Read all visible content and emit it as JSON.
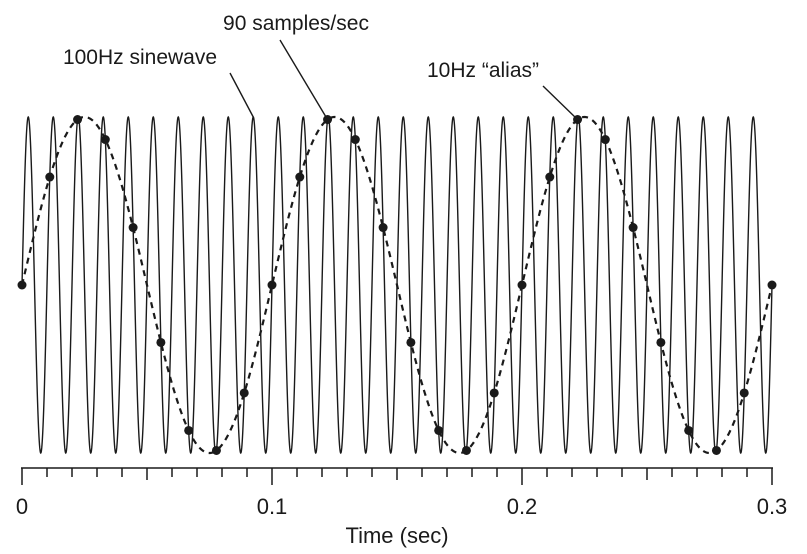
{
  "chart_data": {
    "type": "line",
    "title": "",
    "xlabel": "Time (sec)",
    "ylabel": "",
    "xlim": [
      0,
      0.3
    ],
    "ylim": [
      -1,
      1
    ],
    "grid": false,
    "x_major_ticks": [
      0,
      0.1,
      0.2,
      0.3
    ],
    "x_tick_labels": [
      "0",
      "0.1",
      "0.2",
      "0.3"
    ],
    "x_minor_tick_step": 0.01,
    "series": [
      {
        "name": "100Hz sinewave",
        "frequency_hz": 100,
        "amplitude": 1,
        "style": "solid",
        "color": "#1a1a1a"
      },
      {
        "name": "10Hz “alias”",
        "frequency_hz": 10,
        "amplitude": 1,
        "style": "dashed",
        "color": "#1a1a1a"
      },
      {
        "name": "90 samples/sec",
        "sample_rate_hz": 90,
        "style": "points",
        "color": "#1a1a1a"
      }
    ],
    "annotations": [
      {
        "text": "100Hz sinewave",
        "target_x": 0.0925,
        "target_y": 1.0
      },
      {
        "text": "90 samples/sec",
        "target_x": 0.1222,
        "target_y": 0.985
      },
      {
        "text": "10Hz “alias”",
        "target_x": 0.2222,
        "target_y": 0.985
      }
    ]
  }
}
